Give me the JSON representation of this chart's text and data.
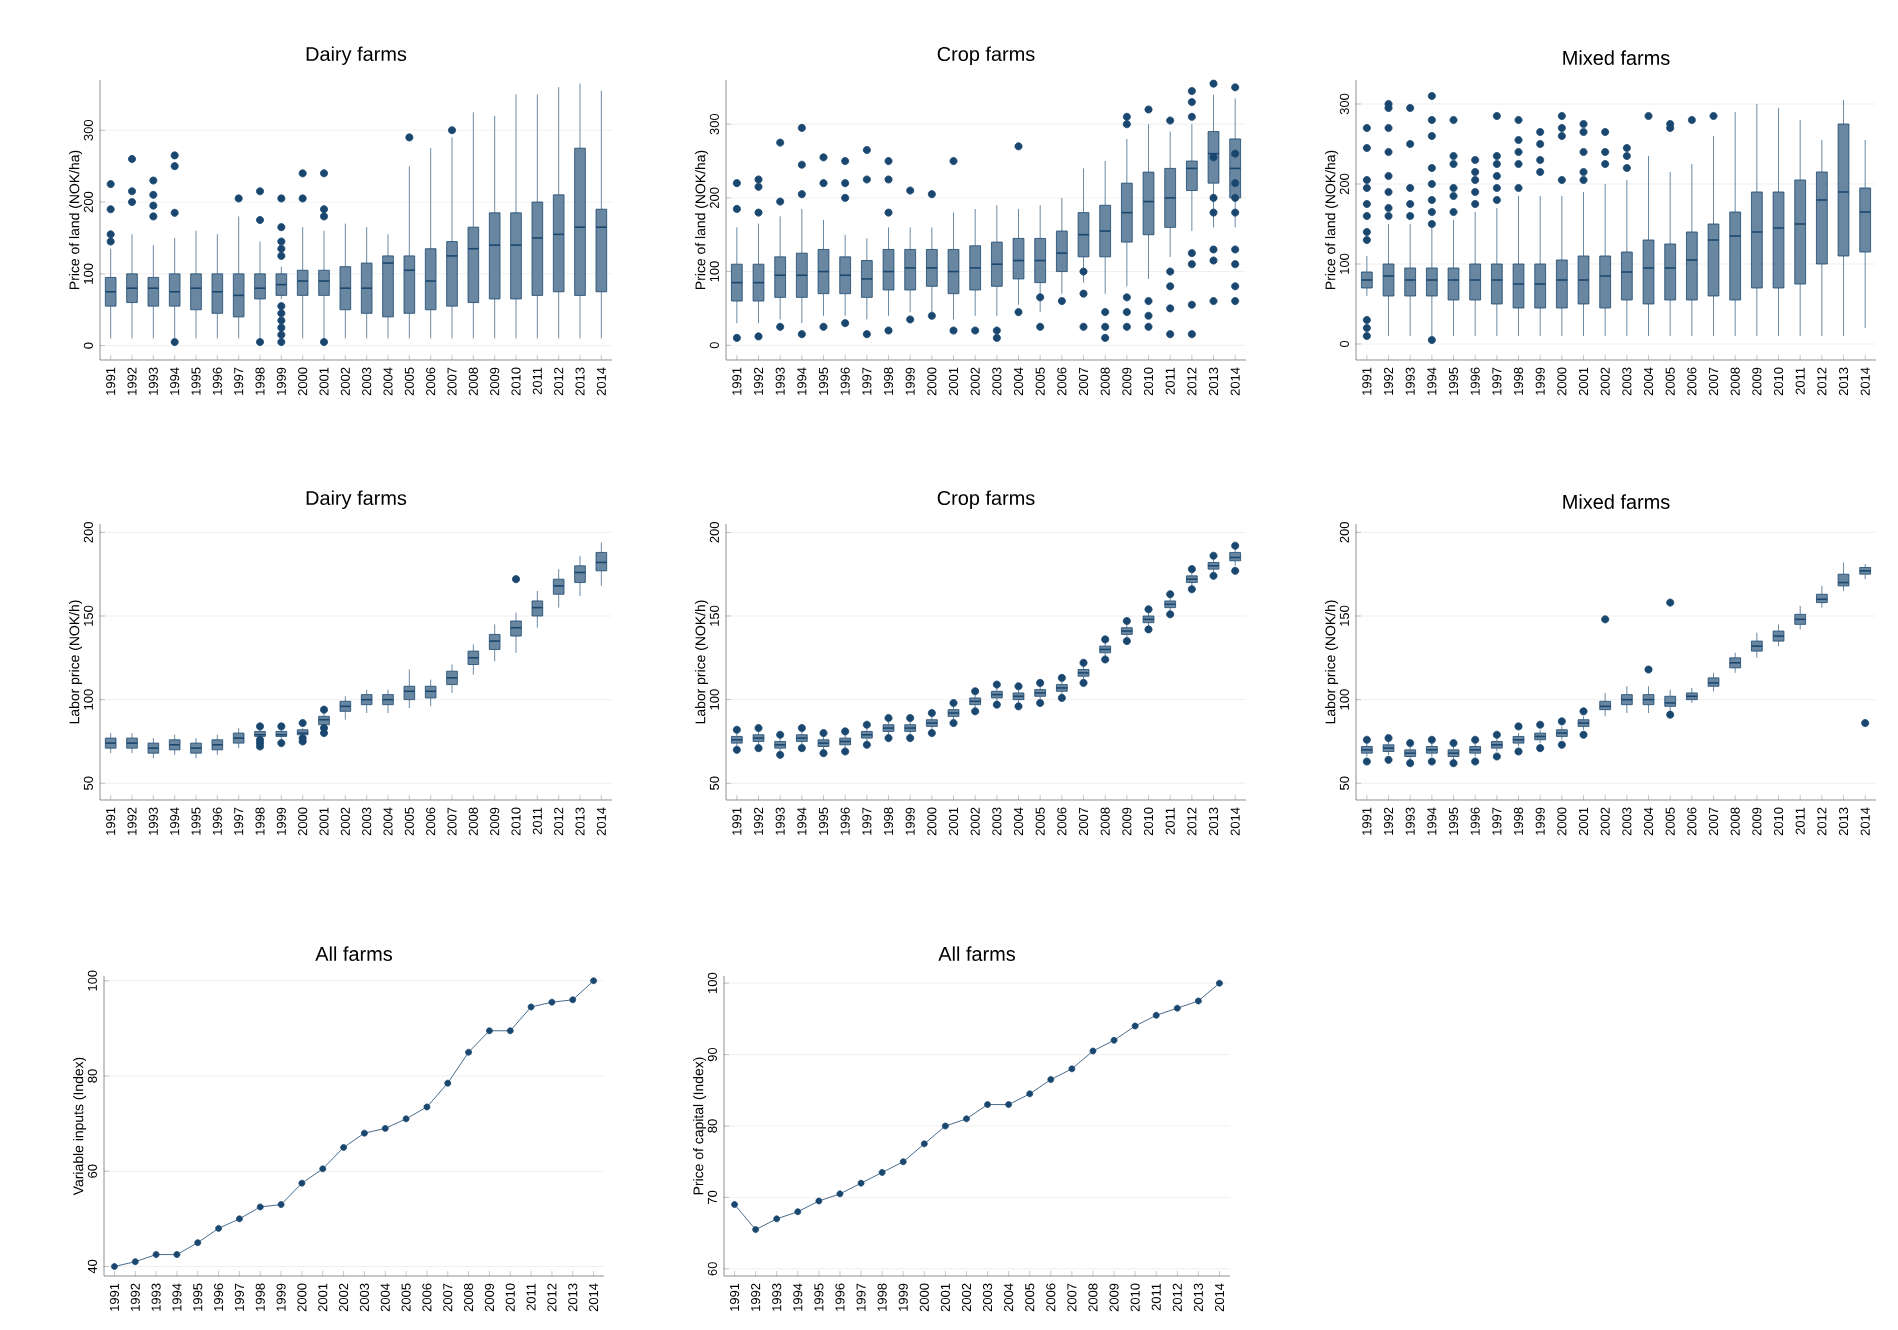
{
  "chart_data": [
    {
      "type": "box",
      "title": "Dairy farms",
      "ylabel": "Price of land (NOK/ha)",
      "color": "#1a476f",
      "grid": "y",
      "ylim": [
        -20,
        370
      ],
      "yticks": [
        0,
        100,
        200,
        300
      ],
      "categories": [
        "1991",
        "1992",
        "1993",
        "1994",
        "1995",
        "1996",
        "1997",
        "1998",
        "1999",
        "2000",
        "2001",
        "2002",
        "2003",
        "2004",
        "2005",
        "2006",
        "2007",
        "2008",
        "2009",
        "2010",
        "2011",
        "2012",
        "2013",
        "2014"
      ],
      "boxes": [
        {
          "low": 10,
          "q1": 55,
          "median": 75,
          "q3": 95,
          "high": 135,
          "outliers": [
            145,
            155,
            190,
            225
          ]
        },
        {
          "low": 10,
          "q1": 60,
          "median": 80,
          "q3": 100,
          "high": 155,
          "outliers": [
            200,
            215,
            260
          ]
        },
        {
          "low": 10,
          "q1": 55,
          "median": 80,
          "q3": 95,
          "high": 140,
          "outliers": [
            180,
            195,
            210,
            230
          ]
        },
        {
          "low": 10,
          "q1": 55,
          "median": 75,
          "q3": 100,
          "high": 150,
          "outliers": [
            5,
            185,
            250,
            265
          ]
        },
        {
          "low": 10,
          "q1": 50,
          "median": 80,
          "q3": 100,
          "high": 160
        },
        {
          "low": 10,
          "q1": 45,
          "median": 75,
          "q3": 100,
          "high": 155
        },
        {
          "low": 10,
          "q1": 40,
          "median": 70,
          "q3": 100,
          "high": 180,
          "outliers": [
            205
          ]
        },
        {
          "low": 10,
          "q1": 65,
          "median": 80,
          "q3": 100,
          "high": 145,
          "outliers": [
            5,
            175,
            215
          ]
        },
        {
          "low": 65,
          "q1": 70,
          "median": 85,
          "q3": 100,
          "high": 110,
          "outliers": [
            5,
            15,
            25,
            35,
            45,
            55,
            125,
            135,
            145,
            165,
            205
          ]
        },
        {
          "low": 10,
          "q1": 70,
          "median": 90,
          "q3": 105,
          "high": 165,
          "outliers": [
            205,
            240
          ]
        },
        {
          "low": 10,
          "q1": 70,
          "median": 90,
          "q3": 105,
          "high": 160,
          "outliers": [
            5,
            180,
            190,
            240
          ]
        },
        {
          "low": 10,
          "q1": 50,
          "median": 80,
          "q3": 110,
          "high": 170
        },
        {
          "low": 10,
          "q1": 45,
          "median": 80,
          "q3": 115,
          "high": 165
        },
        {
          "low": 10,
          "q1": 40,
          "median": 115,
          "q3": 125,
          "high": 155
        },
        {
          "low": 10,
          "q1": 45,
          "median": 105,
          "q3": 125,
          "high": 250,
          "outliers": [
            290
          ]
        },
        {
          "low": 10,
          "q1": 50,
          "median": 90,
          "q3": 135,
          "high": 275
        },
        {
          "low": 10,
          "q1": 55,
          "median": 125,
          "q3": 145,
          "high": 290,
          "outliers": [
            300
          ]
        },
        {
          "low": 10,
          "q1": 60,
          "median": 135,
          "q3": 165,
          "high": 325
        },
        {
          "low": 10,
          "q1": 65,
          "median": 140,
          "q3": 185,
          "high": 320
        },
        {
          "low": 10,
          "q1": 65,
          "median": 140,
          "q3": 185,
          "high": 350
        },
        {
          "low": 10,
          "q1": 70,
          "median": 150,
          "q3": 200,
          "high": 350
        },
        {
          "low": 10,
          "q1": 75,
          "median": 155,
          "q3": 210,
          "high": 360
        },
        {
          "low": 10,
          "q1": 70,
          "median": 165,
          "q3": 275,
          "high": 365
        },
        {
          "low": 10,
          "q1": 75,
          "median": 165,
          "q3": 190,
          "high": 355
        }
      ]
    },
    {
      "type": "box",
      "title": "Crop farms",
      "ylabel": "Price of land (NOK/ha)",
      "color": "#1a476f",
      "grid": "y",
      "ylim": [
        -20,
        360
      ],
      "yticks": [
        0,
        100,
        200,
        300
      ],
      "categories": [
        "1991",
        "1992",
        "1993",
        "1994",
        "1995",
        "1996",
        "1997",
        "1998",
        "1999",
        "2000",
        "2001",
        "2002",
        "2003",
        "2004",
        "2005",
        "2006",
        "2007",
        "2008",
        "2009",
        "2010",
        "2011",
        "2012",
        "2013",
        "2014"
      ],
      "boxes": [
        {
          "low": 30,
          "q1": 60,
          "median": 85,
          "q3": 110,
          "high": 160,
          "outliers": [
            10,
            185,
            220
          ]
        },
        {
          "low": 30,
          "q1": 60,
          "median": 85,
          "q3": 110,
          "high": 165,
          "outliers": [
            12,
            180,
            215,
            225
          ]
        },
        {
          "low": 35,
          "q1": 65,
          "median": 95,
          "q3": 120,
          "high": 175,
          "outliers": [
            25,
            195,
            275
          ]
        },
        {
          "low": 30,
          "q1": 65,
          "median": 95,
          "q3": 125,
          "high": 185,
          "outliers": [
            15,
            205,
            245,
            295
          ]
        },
        {
          "low": 40,
          "q1": 70,
          "median": 100,
          "q3": 130,
          "high": 170,
          "outliers": [
            25,
            220,
            255
          ]
        },
        {
          "low": 40,
          "q1": 70,
          "median": 95,
          "q3": 120,
          "high": 150,
          "outliers": [
            30,
            200,
            220,
            250
          ]
        },
        {
          "low": 35,
          "q1": 65,
          "median": 90,
          "q3": 115,
          "high": 145,
          "outliers": [
            15,
            225,
            265
          ]
        },
        {
          "low": 40,
          "q1": 75,
          "median": 100,
          "q3": 130,
          "high": 160,
          "outliers": [
            20,
            180,
            225,
            250
          ]
        },
        {
          "low": 45,
          "q1": 75,
          "median": 105,
          "q3": 130,
          "high": 160,
          "outliers": [
            35,
            210
          ]
        },
        {
          "low": 45,
          "q1": 80,
          "median": 105,
          "q3": 130,
          "high": 160,
          "outliers": [
            40,
            205
          ]
        },
        {
          "low": 35,
          "q1": 70,
          "median": 100,
          "q3": 130,
          "high": 180,
          "outliers": [
            20,
            250
          ]
        },
        {
          "low": 40,
          "q1": 75,
          "median": 105,
          "q3": 135,
          "high": 185,
          "outliers": [
            20
          ]
        },
        {
          "low": 40,
          "q1": 80,
          "median": 110,
          "q3": 140,
          "high": 190,
          "outliers": [
            10,
            20
          ]
        },
        {
          "low": 55,
          "q1": 90,
          "median": 115,
          "q3": 145,
          "high": 185,
          "outliers": [
            45,
            270
          ]
        },
        {
          "low": 45,
          "q1": 85,
          "median": 115,
          "q3": 145,
          "high": 190,
          "outliers": [
            25,
            65
          ]
        },
        {
          "low": 70,
          "q1": 100,
          "median": 125,
          "q3": 155,
          "high": 200,
          "outliers": [
            60
          ]
        },
        {
          "low": 85,
          "q1": 120,
          "median": 150,
          "q3": 180,
          "high": 240,
          "outliers": [
            25,
            70,
            100
          ]
        },
        {
          "low": 70,
          "q1": 120,
          "median": 155,
          "q3": 190,
          "high": 250,
          "outliers": [
            10,
            25,
            45
          ]
        },
        {
          "low": 80,
          "q1": 140,
          "median": 180,
          "q3": 220,
          "high": 280,
          "outliers": [
            25,
            45,
            65,
            300,
            310
          ]
        },
        {
          "low": 90,
          "q1": 150,
          "median": 195,
          "q3": 235,
          "high": 300,
          "outliers": [
            25,
            40,
            60,
            320
          ]
        },
        {
          "low": 120,
          "q1": 160,
          "median": 200,
          "q3": 240,
          "high": 290,
          "outliers": [
            15,
            50,
            80,
            100,
            305
          ]
        },
        {
          "low": 155,
          "q1": 210,
          "median": 240,
          "q3": 250,
          "high": 300,
          "outliers": [
            15,
            55,
            110,
            125,
            310,
            330,
            345
          ]
        },
        {
          "low": 160,
          "q1": 220,
          "median": 260,
          "q3": 290,
          "high": 340,
          "outliers": [
            60,
            115,
            130,
            180,
            200,
            255,
            355
          ]
        },
        {
          "low": 160,
          "q1": 200,
          "median": 240,
          "q3": 280,
          "high": 335,
          "outliers": [
            60,
            80,
            110,
            130,
            180,
            200,
            220,
            260,
            350
          ]
        }
      ]
    },
    {
      "type": "box",
      "title": "Mixed farms",
      "ylabel": "Price of land (NOK/ha)",
      "color": "#1a476f",
      "grid": "y",
      "ylim": [
        -20,
        330
      ],
      "yticks": [
        0,
        100,
        200,
        300
      ],
      "categories": [
        "1991",
        "1992",
        "1993",
        "1994",
        "1995",
        "1996",
        "1997",
        "1998",
        "1999",
        "2000",
        "2001",
        "2002",
        "2003",
        "2004",
        "2005",
        "2006",
        "2007",
        "2008",
        "2009",
        "2010",
        "2011",
        "2012",
        "2013",
        "2014"
      ],
      "boxes": [
        {
          "low": 60,
          "q1": 70,
          "median": 80,
          "q3": 90,
          "high": 110,
          "outliers": [
            10,
            20,
            30,
            130,
            140,
            160,
            175,
            195,
            205,
            245,
            270
          ]
        },
        {
          "low": 10,
          "q1": 60,
          "median": 85,
          "q3": 100,
          "high": 150,
          "outliers": [
            160,
            170,
            190,
            210,
            240,
            270,
            295,
            300
          ]
        },
        {
          "low": 10,
          "q1": 60,
          "median": 80,
          "q3": 95,
          "high": 150,
          "outliers": [
            160,
            175,
            195,
            250,
            295
          ]
        },
        {
          "low": 10,
          "q1": 60,
          "median": 80,
          "q3": 95,
          "high": 145,
          "outliers": [
            5,
            150,
            165,
            180,
            200,
            220,
            260,
            280,
            310
          ]
        },
        {
          "low": 10,
          "q1": 55,
          "median": 80,
          "q3": 95,
          "high": 155,
          "outliers": [
            165,
            185,
            195,
            225,
            235,
            280
          ]
        },
        {
          "low": 10,
          "q1": 55,
          "median": 80,
          "q3": 100,
          "high": 165,
          "outliers": [
            175,
            190,
            205,
            215,
            230
          ]
        },
        {
          "low": 10,
          "q1": 50,
          "median": 80,
          "q3": 100,
          "high": 170,
          "outliers": [
            180,
            195,
            210,
            225,
            235,
            285
          ]
        },
        {
          "low": 10,
          "q1": 45,
          "median": 75,
          "q3": 100,
          "high": 185,
          "outliers": [
            195,
            225,
            240,
            255,
            280
          ]
        },
        {
          "low": 10,
          "q1": 45,
          "median": 75,
          "q3": 100,
          "high": 185,
          "outliers": [
            215,
            230,
            250,
            265
          ]
        },
        {
          "low": 10,
          "q1": 45,
          "median": 80,
          "q3": 105,
          "high": 185,
          "outliers": [
            205,
            260,
            270,
            285
          ]
        },
        {
          "low": 10,
          "q1": 50,
          "median": 80,
          "q3": 110,
          "high": 190,
          "outliers": [
            205,
            215,
            240,
            265,
            275
          ]
        },
        {
          "low": 10,
          "q1": 45,
          "median": 85,
          "q3": 110,
          "high": 200,
          "outliers": [
            225,
            240,
            265
          ]
        },
        {
          "low": 10,
          "q1": 55,
          "median": 90,
          "q3": 115,
          "high": 205,
          "outliers": [
            220,
            235,
            245
          ]
        },
        {
          "low": 10,
          "q1": 50,
          "median": 95,
          "q3": 130,
          "high": 235,
          "outliers": [
            285
          ]
        },
        {
          "low": 10,
          "q1": 55,
          "median": 95,
          "q3": 125,
          "high": 215,
          "outliers": [
            270,
            275
          ]
        },
        {
          "low": 10,
          "q1": 55,
          "median": 105,
          "q3": 140,
          "high": 225,
          "outliers": [
            280
          ]
        },
        {
          "low": 10,
          "q1": 60,
          "median": 130,
          "q3": 150,
          "high": 260,
          "outliers": [
            285
          ]
        },
        {
          "low": 10,
          "q1": 55,
          "median": 135,
          "q3": 165,
          "high": 290
        },
        {
          "low": 10,
          "q1": 70,
          "median": 140,
          "q3": 190,
          "high": 300
        },
        {
          "low": 10,
          "q1": 70,
          "median": 145,
          "q3": 190,
          "high": 295
        },
        {
          "low": 10,
          "q1": 75,
          "median": 150,
          "q3": 205,
          "high": 280
        },
        {
          "low": 10,
          "q1": 100,
          "median": 180,
          "q3": 215,
          "high": 255
        },
        {
          "low": 10,
          "q1": 110,
          "median": 190,
          "q3": 275,
          "high": 305
        },
        {
          "low": 20,
          "q1": 115,
          "median": 165,
          "q3": 195,
          "high": 255
        }
      ]
    },
    {
      "type": "box",
      "title": "Dairy farms",
      "ylabel": "Labor price (NOK/h)",
      "color": "#1a476f",
      "grid": "y",
      "ylim": [
        40,
        205
      ],
      "yticks": [
        50,
        100,
        150,
        200
      ],
      "categories": [
        "1991",
        "1992",
        "1993",
        "1994",
        "1995",
        "1996",
        "1997",
        "1998",
        "1999",
        "2000",
        "2001",
        "2002",
        "2003",
        "2004",
        "2005",
        "2006",
        "2007",
        "2008",
        "2009",
        "2010",
        "2011",
        "2012",
        "2013",
        "2014"
      ],
      "boxes": [
        {
          "low": 68,
          "q1": 71,
          "median": 74,
          "q3": 77,
          "high": 80
        },
        {
          "low": 68,
          "q1": 71,
          "median": 74,
          "q3": 77,
          "high": 80
        },
        {
          "low": 65,
          "q1": 68,
          "median": 71,
          "q3": 74,
          "high": 77
        },
        {
          "low": 67,
          "q1": 70,
          "median": 73,
          "q3": 76,
          "high": 79
        },
        {
          "low": 65,
          "q1": 68,
          "median": 71,
          "q3": 74,
          "high": 77
        },
        {
          "low": 67,
          "q1": 70,
          "median": 73,
          "q3": 76,
          "high": 79
        },
        {
          "low": 71,
          "q1": 74,
          "median": 77,
          "q3": 80,
          "high": 83
        },
        {
          "low": 76,
          "q1": 78,
          "median": 79,
          "q3": 81,
          "high": 82,
          "outliers": [
            72,
            74,
            76,
            84
          ]
        },
        {
          "low": 76,
          "q1": 78,
          "median": 79,
          "q3": 81,
          "high": 82,
          "outliers": [
            74,
            84
          ]
        },
        {
          "low": 77,
          "q1": 79,
          "median": 80,
          "q3": 82,
          "high": 83,
          "outliers": [
            75,
            77,
            86
          ]
        },
        {
          "low": 82,
          "q1": 85,
          "median": 88,
          "q3": 90,
          "high": 92,
          "outliers": [
            80,
            83,
            94
          ]
        },
        {
          "low": 88,
          "q1": 93,
          "median": 96,
          "q3": 99,
          "high": 102
        },
        {
          "low": 92,
          "q1": 97,
          "median": 100,
          "q3": 103,
          "high": 106
        },
        {
          "low": 92,
          "q1": 97,
          "median": 100,
          "q3": 103,
          "high": 106
        },
        {
          "low": 95,
          "q1": 100,
          "median": 105,
          "q3": 108,
          "high": 118
        },
        {
          "low": 96,
          "q1": 101,
          "median": 105,
          "q3": 108,
          "high": 112
        },
        {
          "low": 104,
          "q1": 109,
          "median": 113,
          "q3": 117,
          "high": 121
        },
        {
          "low": 115,
          "q1": 121,
          "median": 125,
          "q3": 129,
          "high": 133
        },
        {
          "low": 123,
          "q1": 130,
          "median": 135,
          "q3": 139,
          "high": 145
        },
        {
          "low": 128,
          "q1": 138,
          "median": 143,
          "q3": 147,
          "high": 152,
          "outliers": [
            172
          ]
        },
        {
          "low": 143,
          "q1": 150,
          "median": 155,
          "q3": 159,
          "high": 165
        },
        {
          "low": 155,
          "q1": 163,
          "median": 168,
          "q3": 172,
          "high": 178
        },
        {
          "low": 162,
          "q1": 170,
          "median": 176,
          "q3": 180,
          "high": 186
        },
        {
          "low": 168,
          "q1": 177,
          "median": 182,
          "q3": 188,
          "high": 194
        }
      ]
    },
    {
      "type": "box",
      "title": "Crop farms",
      "ylabel": "Labor price (NOK/h)",
      "color": "#1a476f",
      "grid": "y",
      "ylim": [
        40,
        205
      ],
      "yticks": [
        50,
        100,
        150,
        200
      ],
      "categories": [
        "1991",
        "1992",
        "1993",
        "1994",
        "1995",
        "1996",
        "1997",
        "1998",
        "1999",
        "2000",
        "2001",
        "2002",
        "2003",
        "2004",
        "2005",
        "2006",
        "2007",
        "2008",
        "2009",
        "2010",
        "2011",
        "2012",
        "2013",
        "2014"
      ],
      "boxes": [
        {
          "low": 72,
          "q1": 74,
          "median": 76,
          "q3": 78,
          "high": 80,
          "outliers": [
            70,
            82
          ]
        },
        {
          "low": 73,
          "q1": 75,
          "median": 77,
          "q3": 79,
          "high": 81,
          "outliers": [
            71,
            83
          ]
        },
        {
          "low": 69,
          "q1": 71,
          "median": 73,
          "q3": 75,
          "high": 77,
          "outliers": [
            67,
            79
          ]
        },
        {
          "low": 73,
          "q1": 75,
          "median": 77,
          "q3": 79,
          "high": 81,
          "outliers": [
            71,
            83
          ]
        },
        {
          "low": 70,
          "q1": 72,
          "median": 74,
          "q3": 76,
          "high": 78,
          "outliers": [
            68,
            80
          ]
        },
        {
          "low": 71,
          "q1": 73,
          "median": 75,
          "q3": 77,
          "high": 79,
          "outliers": [
            69,
            81
          ]
        },
        {
          "low": 75,
          "q1": 77,
          "median": 79,
          "q3": 81,
          "high": 83,
          "outliers": [
            73,
            85
          ]
        },
        {
          "low": 79,
          "q1": 81,
          "median": 83,
          "q3": 85,
          "high": 87,
          "outliers": [
            77,
            89
          ]
        },
        {
          "low": 79,
          "q1": 81,
          "median": 83,
          "q3": 85,
          "high": 87,
          "outliers": [
            77,
            89
          ]
        },
        {
          "low": 82,
          "q1": 84,
          "median": 86,
          "q3": 88,
          "high": 90,
          "outliers": [
            80,
            92
          ]
        },
        {
          "low": 88,
          "q1": 90,
          "median": 92,
          "q3": 94,
          "high": 96,
          "outliers": [
            86,
            98
          ]
        },
        {
          "low": 95,
          "q1": 97,
          "median": 99,
          "q3": 101,
          "high": 103,
          "outliers": [
            93,
            105
          ]
        },
        {
          "low": 99,
          "q1": 101,
          "median": 103,
          "q3": 105,
          "high": 107,
          "outliers": [
            97,
            109
          ]
        },
        {
          "low": 98,
          "q1": 100,
          "median": 102,
          "q3": 104,
          "high": 106,
          "outliers": [
            96,
            108
          ]
        },
        {
          "low": 100,
          "q1": 102,
          "median": 104,
          "q3": 106,
          "high": 108,
          "outliers": [
            98,
            110
          ]
        },
        {
          "low": 103,
          "q1": 105,
          "median": 107,
          "q3": 109,
          "high": 111,
          "outliers": [
            101,
            113
          ]
        },
        {
          "low": 112,
          "q1": 114,
          "median": 116,
          "q3": 118,
          "high": 120,
          "outliers": [
            110,
            122
          ]
        },
        {
          "low": 126,
          "q1": 128,
          "median": 130,
          "q3": 132,
          "high": 134,
          "outliers": [
            124,
            136
          ]
        },
        {
          "low": 137,
          "q1": 139,
          "median": 141,
          "q3": 143,
          "high": 145,
          "outliers": [
            135,
            147
          ]
        },
        {
          "low": 144,
          "q1": 146,
          "median": 148,
          "q3": 150,
          "high": 152,
          "outliers": [
            142,
            154
          ]
        },
        {
          "low": 153,
          "q1": 155,
          "median": 157,
          "q3": 159,
          "high": 161,
          "outliers": [
            151,
            163
          ]
        },
        {
          "low": 168,
          "q1": 170,
          "median": 172,
          "q3": 174,
          "high": 176,
          "outliers": [
            166,
            178
          ]
        },
        {
          "low": 176,
          "q1": 178,
          "median": 180,
          "q3": 182,
          "high": 184,
          "outliers": [
            174,
            186
          ]
        },
        {
          "low": 180,
          "q1": 183,
          "median": 185,
          "q3": 188,
          "high": 190,
          "outliers": [
            177,
            192
          ]
        }
      ]
    },
    {
      "type": "box",
      "title": "Mixed farms",
      "ylabel": "Labor price (NOK/h)",
      "color": "#1a476f",
      "grid": "y",
      "ylim": [
        40,
        205
      ],
      "yticks": [
        50,
        100,
        150,
        200
      ],
      "categories": [
        "1991",
        "1992",
        "1993",
        "1994",
        "1995",
        "1996",
        "1997",
        "1998",
        "1999",
        "2000",
        "2001",
        "2002",
        "2003",
        "2004",
        "2005",
        "2006",
        "2007",
        "2008",
        "2009",
        "2010",
        "2011",
        "2012",
        "2013",
        "2014"
      ],
      "boxes": [
        {
          "low": 66,
          "q1": 68,
          "median": 70,
          "q3": 72,
          "high": 74,
          "outliers": [
            63,
            76
          ]
        },
        {
          "low": 67,
          "q1": 69,
          "median": 71,
          "q3": 73,
          "high": 75,
          "outliers": [
            64,
            77
          ]
        },
        {
          "low": 64,
          "q1": 66,
          "median": 68,
          "q3": 70,
          "high": 72,
          "outliers": [
            62,
            74
          ]
        },
        {
          "low": 66,
          "q1": 68,
          "median": 70,
          "q3": 72,
          "high": 74,
          "outliers": [
            63,
            76
          ]
        },
        {
          "low": 64,
          "q1": 66,
          "median": 68,
          "q3": 70,
          "high": 72,
          "outliers": [
            62,
            74
          ]
        },
        {
          "low": 66,
          "q1": 68,
          "median": 70,
          "q3": 72,
          "high": 74,
          "outliers": [
            63,
            76
          ]
        },
        {
          "low": 69,
          "q1": 71,
          "median": 73,
          "q3": 75,
          "high": 77,
          "outliers": [
            66,
            79
          ]
        },
        {
          "low": 72,
          "q1": 74,
          "median": 76,
          "q3": 78,
          "high": 80,
          "outliers": [
            69,
            84
          ]
        },
        {
          "low": 74,
          "q1": 76,
          "median": 78,
          "q3": 80,
          "high": 82,
          "outliers": [
            71,
            85
          ]
        },
        {
          "low": 76,
          "q1": 78,
          "median": 80,
          "q3": 82,
          "high": 84,
          "outliers": [
            73,
            87
          ]
        },
        {
          "low": 82,
          "q1": 84,
          "median": 86,
          "q3": 88,
          "high": 90,
          "outliers": [
            79,
            93
          ]
        },
        {
          "low": 90,
          "q1": 94,
          "median": 96,
          "q3": 99,
          "high": 104,
          "outliers": [
            148
          ]
        },
        {
          "low": 92,
          "q1": 97,
          "median": 100,
          "q3": 103,
          "high": 108
        },
        {
          "low": 92,
          "q1": 97,
          "median": 100,
          "q3": 103,
          "high": 108,
          "outliers": [
            118
          ]
        },
        {
          "low": 93,
          "q1": 96,
          "median": 98,
          "q3": 102,
          "high": 106,
          "outliers": [
            91,
            158
          ]
        },
        {
          "low": 98,
          "q1": 100,
          "median": 102,
          "q3": 104,
          "high": 107
        },
        {
          "low": 105,
          "q1": 108,
          "median": 110,
          "q3": 113,
          "high": 116
        },
        {
          "low": 116,
          "q1": 119,
          "median": 122,
          "q3": 125,
          "high": 128
        },
        {
          "low": 125,
          "q1": 129,
          "median": 132,
          "q3": 135,
          "high": 140
        },
        {
          "low": 132,
          "q1": 135,
          "median": 138,
          "q3": 141,
          "high": 145
        },
        {
          "low": 142,
          "q1": 145,
          "median": 148,
          "q3": 151,
          "high": 156
        },
        {
          "low": 155,
          "q1": 158,
          "median": 160,
          "q3": 163,
          "high": 168
        },
        {
          "low": 165,
          "q1": 168,
          "median": 170,
          "q3": 175,
          "high": 182
        },
        {
          "low": 172,
          "q1": 175,
          "median": 177,
          "q3": 179,
          "high": 181,
          "outliers": [
            86
          ]
        }
      ]
    },
    {
      "type": "line",
      "title": "All farms",
      "ylabel": "Variable inputs (Index)",
      "color": "#1a476f",
      "grid": "y",
      "marker": "circle",
      "line_style": "solid",
      "ylim": [
        38,
        101
      ],
      "yticks": [
        40,
        60,
        80,
        100
      ],
      "categories": [
        "1991",
        "1992",
        "1993",
        "1994",
        "1995",
        "1996",
        "1997",
        "1998",
        "1999",
        "2000",
        "2001",
        "2002",
        "2003",
        "2004",
        "2005",
        "2006",
        "2007",
        "2008",
        "2009",
        "2010",
        "2011",
        "2012",
        "2013",
        "2014"
      ],
      "values": [
        40,
        41,
        42.5,
        42.5,
        45,
        48,
        50,
        52.5,
        53,
        57.5,
        60.5,
        65,
        68,
        69,
        71,
        73.5,
        78.5,
        85,
        89.5,
        89.5,
        94.5,
        95.5,
        96,
        100
      ]
    },
    {
      "type": "line",
      "title": "All farms",
      "ylabel": "Price of capital (Index)",
      "color": "#1a476f",
      "grid": "y",
      "marker": "circle",
      "line_style": "solid",
      "ylim": [
        59,
        101
      ],
      "yticks": [
        60,
        70,
        80,
        90,
        100
      ],
      "categories": [
        "1991",
        "1992",
        "1993",
        "1994",
        "1995",
        "1996",
        "1997",
        "1998",
        "1999",
        "2000",
        "2001",
        "2002",
        "2003",
        "2004",
        "2005",
        "2006",
        "2007",
        "2008",
        "2009",
        "2010",
        "2011",
        "2012",
        "2013",
        "2014"
      ],
      "values": [
        69,
        65.5,
        67,
        68,
        69.5,
        70.5,
        72,
        73.5,
        75,
        77.5,
        80,
        81,
        83,
        83,
        84.5,
        86.5,
        88,
        90.5,
        92,
        94,
        95.5,
        96.5,
        97.5,
        100
      ]
    }
  ]
}
